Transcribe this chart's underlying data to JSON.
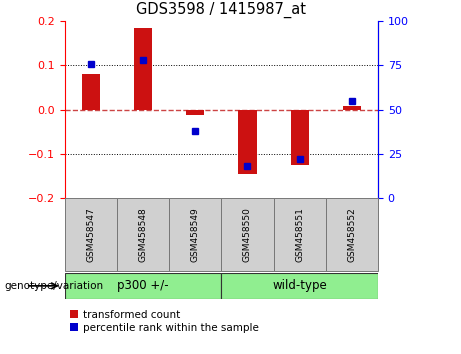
{
  "title": "GDS3598 / 1415987_at",
  "samples": [
    "GSM458547",
    "GSM458548",
    "GSM458549",
    "GSM458550",
    "GSM458551",
    "GSM458552"
  ],
  "red_bars": [
    0.08,
    0.185,
    -0.012,
    -0.145,
    -0.125,
    0.008
  ],
  "blue_pct": [
    76,
    78,
    38,
    18,
    22,
    55
  ],
  "groups": [
    {
      "label": "p300 +/-",
      "start": 0,
      "end": 2
    },
    {
      "label": "wild-type",
      "start": 3,
      "end": 5
    }
  ],
  "group_label": "genotype/variation",
  "ylim_left": [
    -0.2,
    0.2
  ],
  "ylim_right": [
    0,
    100
  ],
  "yticks_left": [
    -0.2,
    -0.1,
    0.0,
    0.1,
    0.2
  ],
  "yticks_right": [
    0,
    25,
    50,
    75,
    100
  ],
  "bar_color": "#CC1111",
  "dot_color": "#0000CC",
  "zero_line_color": "#CC4444",
  "dot_color_right": "#0000CC",
  "group_color": "#90EE90",
  "sample_box_color": "#D0D0D0",
  "legend_items": [
    "transformed count",
    "percentile rank within the sample"
  ]
}
